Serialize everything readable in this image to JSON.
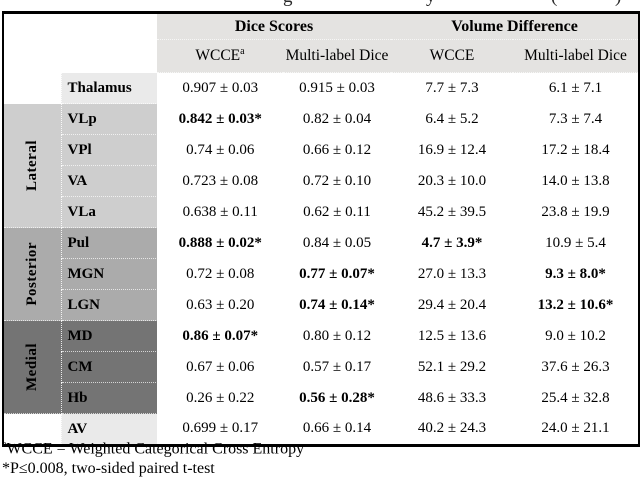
{
  "caption_fragments": [
    "g",
    "y",
    "(",
    ")"
  ],
  "table": {
    "col_groups": [
      {
        "label": "Dice Scores"
      },
      {
        "label": "Volume Difference"
      }
    ],
    "sub_headers": [
      {
        "label": "WCCE",
        "sup": "a"
      },
      {
        "label": "Multi-label Dice",
        "sup": ""
      },
      {
        "label": "WCCE",
        "sup": ""
      },
      {
        "label": "Multi-label Dice",
        "sup": ""
      }
    ],
    "sections": [
      {
        "group": "",
        "shade": "plain",
        "rows": [
          {
            "nucleus": "Thalamus",
            "cells": [
              {
                "v": "0.907 ± 0.03",
                "bold": false
              },
              {
                "v": "0.915 ± 0.03",
                "bold": false
              },
              {
                "v": "7.7 ± 7.3",
                "bold": false
              },
              {
                "v": "6.1 ± 7.1",
                "bold": false
              }
            ]
          }
        ]
      },
      {
        "group": "Lateral",
        "shade": "lateral",
        "rows": [
          {
            "nucleus": "VLp",
            "cells": [
              {
                "v": "0.842 ± 0.03*",
                "bold": true
              },
              {
                "v": "0.82 ± 0.04",
                "bold": false
              },
              {
                "v": "6.4 ± 5.2",
                "bold": false
              },
              {
                "v": "7.3 ± 7.4",
                "bold": false
              }
            ]
          },
          {
            "nucleus": "VPl",
            "cells": [
              {
                "v": "0.74 ± 0.06",
                "bold": false
              },
              {
                "v": "0.66 ± 0.12",
                "bold": false
              },
              {
                "v": "16.9 ± 12.4",
                "bold": false
              },
              {
                "v": "17.2 ± 18.4",
                "bold": false
              }
            ]
          },
          {
            "nucleus": "VA",
            "cells": [
              {
                "v": "0.723 ± 0.08",
                "bold": false
              },
              {
                "v": "0.72 ± 0.10",
                "bold": false
              },
              {
                "v": "20.3 ± 10.0",
                "bold": false
              },
              {
                "v": "14.0 ± 13.8",
                "bold": false
              }
            ]
          },
          {
            "nucleus": "VLa",
            "cells": [
              {
                "v": "0.638 ± 0.11",
                "bold": false
              },
              {
                "v": "0.62 ± 0.11",
                "bold": false
              },
              {
                "v": "45.2 ± 39.5",
                "bold": false
              },
              {
                "v": "23.8 ± 19.9",
                "bold": false
              }
            ]
          }
        ]
      },
      {
        "group": "Posterior",
        "shade": "posterior",
        "rows": [
          {
            "nucleus": "Pul",
            "cells": [
              {
                "v": "0.888 ± 0.02*",
                "bold": true
              },
              {
                "v": "0.84 ± 0.05",
                "bold": false
              },
              {
                "v": "4.7 ± 3.9*",
                "bold": true
              },
              {
                "v": "10.9 ± 5.4",
                "bold": false
              }
            ]
          },
          {
            "nucleus": "MGN",
            "cells": [
              {
                "v": "0.72 ± 0.08",
                "bold": false
              },
              {
                "v": "0.77 ± 0.07*",
                "bold": true
              },
              {
                "v": "27.0 ± 13.3",
                "bold": false
              },
              {
                "v": "9.3 ± 8.0*",
                "bold": true
              }
            ]
          },
          {
            "nucleus": "LGN",
            "cells": [
              {
                "v": "0.63 ± 0.20",
                "bold": false
              },
              {
                "v": "0.74 ± 0.14*",
                "bold": true
              },
              {
                "v": "29.4 ± 20.4",
                "bold": false
              },
              {
                "v": "13.2 ± 10.6*",
                "bold": true
              }
            ]
          }
        ]
      },
      {
        "group": "Medial",
        "shade": "medial",
        "rows": [
          {
            "nucleus": "MD",
            "cells": [
              {
                "v": "0.86 ± 0.07*",
                "bold": true
              },
              {
                "v": "0.80 ± 0.12",
                "bold": false
              },
              {
                "v": "12.5 ± 13.6",
                "bold": false
              },
              {
                "v": "9.0 ± 10.2",
                "bold": false
              }
            ]
          },
          {
            "nucleus": "CM",
            "cells": [
              {
                "v": "0.67 ± 0.06",
                "bold": false
              },
              {
                "v": "0.57 ± 0.17",
                "bold": false
              },
              {
                "v": "52.1 ± 29.2",
                "bold": false
              },
              {
                "v": "37.6 ± 26.3",
                "bold": false
              }
            ]
          },
          {
            "nucleus": "Hb",
            "cells": [
              {
                "v": "0.26 ± 0.22",
                "bold": false
              },
              {
                "v": "0.56 ± 0.28*",
                "bold": true
              },
              {
                "v": "48.6 ± 33.3",
                "bold": false
              },
              {
                "v": "25.4 ± 32.8",
                "bold": false
              }
            ]
          }
        ]
      },
      {
        "group": "",
        "shade": "plain",
        "rows": [
          {
            "nucleus": "AV",
            "cells": [
              {
                "v": "0.699 ± 0.17",
                "bold": false
              },
              {
                "v": "0.66 ± 0.14",
                "bold": false
              },
              {
                "v": "40.2 ± 24.3",
                "bold": false
              },
              {
                "v": "24.0 ± 21.1",
                "bold": false
              }
            ]
          }
        ]
      }
    ]
  },
  "footnotes": {
    "a_sup": "a",
    "a_text": "WCCE = Weighted Categorical Cross Entropy",
    "star_text": "*P≤0.008, two-sided paired t-test"
  },
  "colors": {
    "header_bg": "#e4e3e1",
    "plain_row_bg": "#eaeaea",
    "lateral_bg": "#cecece",
    "posterior_bg": "#ababab",
    "medial_bg": "#747474",
    "border": "#000000"
  }
}
